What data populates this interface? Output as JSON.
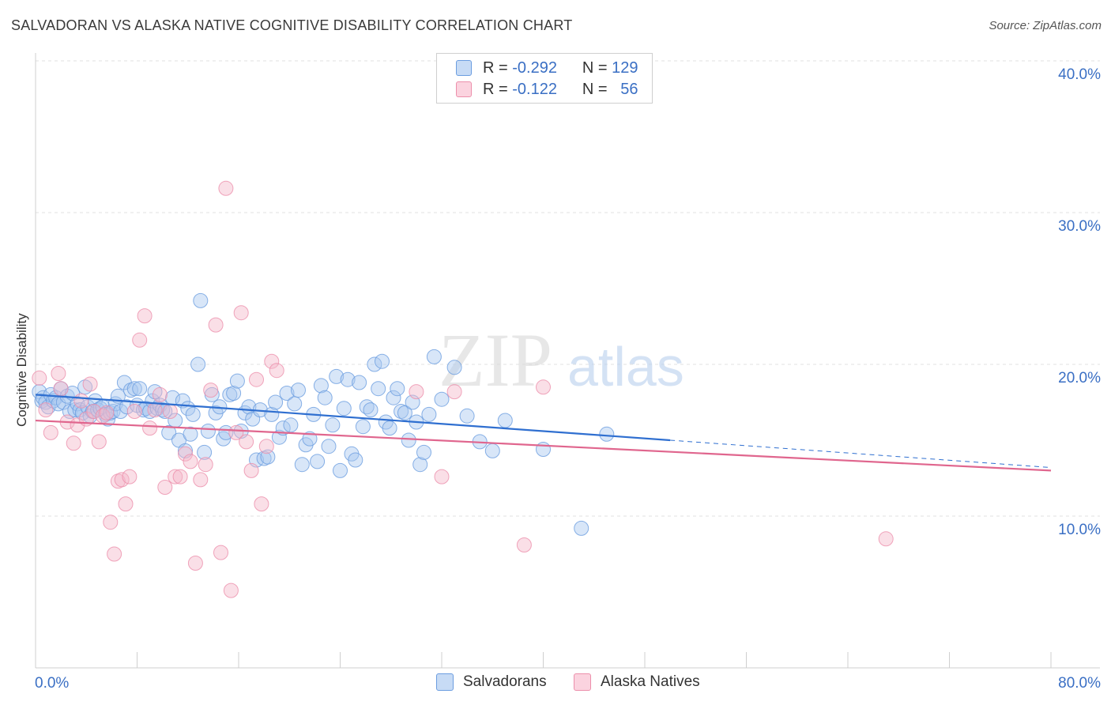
{
  "header": {
    "title": "SALVADORAN VS ALASKA NATIVE COGNITIVE DISABILITY CORRELATION CHART",
    "source": "Source: ZipAtlas.com"
  },
  "legend": {
    "rows": [
      {
        "r_label": "R =",
        "r_value": "-0.292",
        "n_label": "N =",
        "n_value": "129",
        "color": "#a9c8f0"
      },
      {
        "r_label": "R =",
        "r_value": "-0.122",
        "n_label": "N =",
        "n_value": "56",
        "color": "#f5b8ca"
      }
    ]
  },
  "bottom_legend": [
    {
      "label": "Salvadorans",
      "color": "#a9c8f0"
    },
    {
      "label": "Alaska Natives",
      "color": "#f5b8ca"
    }
  ],
  "watermark": {
    "zip": "ZIP",
    "atlas": "atlas"
  },
  "chart_data": {
    "type": "scatter",
    "ylabel": "Cognitive Disability",
    "x_tick_labels": [
      "0.0%",
      "80.0%"
    ],
    "y_tick_labels": [
      "10.0%",
      "20.0%",
      "30.0%",
      "40.0%"
    ],
    "xlim": [
      0,
      80
    ],
    "ylim": [
      0,
      40
    ],
    "grid": true,
    "legend_position": "top-center",
    "series": [
      {
        "name": "Salvadorans",
        "color": "#6b9de0",
        "fill": "#a9c8f0",
        "trend": {
          "x0": 0,
          "y0": 18.0,
          "x1": 50,
          "y1": 15.0,
          "dashed_to_x": 80,
          "dashed_to_y": 13.2
        },
        "points": [
          [
            0.3,
            18.2
          ],
          [
            0.5,
            17.6
          ],
          [
            0.6,
            17.8
          ],
          [
            0.8,
            17.5
          ],
          [
            1.0,
            17.2
          ],
          [
            1.2,
            18.0
          ],
          [
            1.4,
            17.6
          ],
          [
            1.6,
            17.8
          ],
          [
            1.8,
            17.4
          ],
          [
            2.0,
            18.4
          ],
          [
            2.2,
            17.5
          ],
          [
            2.5,
            17.9
          ],
          [
            2.7,
            16.9
          ],
          [
            2.9,
            18.1
          ],
          [
            3.1,
            17.0
          ],
          [
            3.3,
            17.4
          ],
          [
            3.5,
            17.0
          ],
          [
            3.7,
            16.8
          ],
          [
            3.9,
            18.5
          ],
          [
            4.1,
            17.2
          ],
          [
            4.3,
            16.6
          ],
          [
            4.5,
            16.9
          ],
          [
            4.7,
            17.6
          ],
          [
            4.9,
            17.0
          ],
          [
            5.1,
            17.1
          ],
          [
            5.3,
            17.2
          ],
          [
            5.5,
            16.7
          ],
          [
            5.7,
            16.4
          ],
          [
            5.9,
            16.8
          ],
          [
            6.1,
            16.9
          ],
          [
            6.3,
            17.4
          ],
          [
            6.5,
            17.9
          ],
          [
            6.7,
            16.9
          ],
          [
            7.0,
            18.8
          ],
          [
            7.2,
            17.2
          ],
          [
            7.5,
            18.3
          ],
          [
            7.8,
            18.4
          ],
          [
            8.0,
            17.3
          ],
          [
            8.2,
            18.4
          ],
          [
            8.5,
            17.0
          ],
          [
            8.7,
            17.1
          ],
          [
            9.0,
            16.9
          ],
          [
            9.2,
            17.6
          ],
          [
            9.4,
            18.2
          ],
          [
            9.6,
            17.1
          ],
          [
            9.8,
            17.3
          ],
          [
            10.0,
            17.0
          ],
          [
            10.2,
            16.9
          ],
          [
            10.5,
            15.5
          ],
          [
            10.8,
            17.8
          ],
          [
            11.0,
            16.3
          ],
          [
            11.3,
            15.0
          ],
          [
            11.6,
            17.6
          ],
          [
            11.8,
            14.3
          ],
          [
            12.0,
            17.1
          ],
          [
            12.2,
            15.4
          ],
          [
            12.4,
            16.7
          ],
          [
            12.8,
            20.0
          ],
          [
            13.0,
            24.2
          ],
          [
            13.3,
            14.2
          ],
          [
            13.6,
            15.6
          ],
          [
            13.9,
            18.0
          ],
          [
            14.2,
            16.8
          ],
          [
            14.5,
            17.2
          ],
          [
            14.8,
            15.1
          ],
          [
            15.0,
            15.5
          ],
          [
            15.3,
            18.0
          ],
          [
            15.6,
            18.1
          ],
          [
            15.9,
            18.9
          ],
          [
            16.2,
            15.6
          ],
          [
            16.5,
            16.8
          ],
          [
            16.8,
            17.2
          ],
          [
            17.1,
            16.4
          ],
          [
            17.4,
            13.7
          ],
          [
            17.7,
            17.0
          ],
          [
            18.0,
            13.8
          ],
          [
            18.3,
            13.9
          ],
          [
            18.6,
            16.7
          ],
          [
            18.9,
            17.5
          ],
          [
            19.2,
            15.2
          ],
          [
            19.5,
            15.8
          ],
          [
            19.8,
            18.1
          ],
          [
            20.1,
            16.0
          ],
          [
            20.4,
            17.4
          ],
          [
            20.7,
            18.3
          ],
          [
            21.0,
            13.4
          ],
          [
            21.3,
            14.7
          ],
          [
            21.6,
            15.1
          ],
          [
            21.9,
            16.7
          ],
          [
            22.2,
            13.6
          ],
          [
            22.5,
            18.6
          ],
          [
            22.8,
            17.8
          ],
          [
            23.1,
            14.6
          ],
          [
            23.4,
            16.0
          ],
          [
            23.7,
            19.2
          ],
          [
            24.0,
            13.0
          ],
          [
            24.3,
            17.1
          ],
          [
            24.6,
            19.0
          ],
          [
            24.9,
            14.1
          ],
          [
            25.2,
            13.7
          ],
          [
            25.5,
            18.8
          ],
          [
            25.8,
            15.9
          ],
          [
            26.1,
            17.2
          ],
          [
            26.4,
            17.0
          ],
          [
            26.7,
            20.0
          ],
          [
            27.0,
            18.4
          ],
          [
            27.3,
            20.2
          ],
          [
            27.6,
            16.2
          ],
          [
            27.9,
            15.8
          ],
          [
            28.2,
            17.8
          ],
          [
            28.5,
            18.4
          ],
          [
            28.8,
            16.9
          ],
          [
            29.1,
            16.8
          ],
          [
            29.4,
            15.0
          ],
          [
            29.7,
            17.5
          ],
          [
            30.0,
            16.2
          ],
          [
            30.3,
            13.4
          ],
          [
            30.6,
            14.2
          ],
          [
            31.0,
            16.7
          ],
          [
            31.4,
            20.5
          ],
          [
            32.0,
            17.7
          ],
          [
            33.0,
            19.8
          ],
          [
            34.0,
            16.6
          ],
          [
            35.0,
            14.9
          ],
          [
            36.0,
            14.3
          ],
          [
            37.0,
            16.3
          ],
          [
            40.0,
            14.4
          ],
          [
            43.0,
            9.2
          ],
          [
            45.0,
            15.4
          ]
        ]
      },
      {
        "name": "Alaska Natives",
        "color": "#ec8fab",
        "fill": "#f5b8ca",
        "trend": {
          "x0": 0,
          "y0": 16.3,
          "x1": 80,
          "y1": 13.0
        },
        "points": [
          [
            0.3,
            19.1
          ],
          [
            0.8,
            17.0
          ],
          [
            1.2,
            15.5
          ],
          [
            1.8,
            19.4
          ],
          [
            2.0,
            18.4
          ],
          [
            2.5,
            16.2
          ],
          [
            3.0,
            14.8
          ],
          [
            3.3,
            16.0
          ],
          [
            3.6,
            17.6
          ],
          [
            4.0,
            16.4
          ],
          [
            4.3,
            18.7
          ],
          [
            4.6,
            16.9
          ],
          [
            5.0,
            14.9
          ],
          [
            5.3,
            16.6
          ],
          [
            5.6,
            16.8
          ],
          [
            5.9,
            9.6
          ],
          [
            6.2,
            7.5
          ],
          [
            6.5,
            12.3
          ],
          [
            6.8,
            12.4
          ],
          [
            7.1,
            10.8
          ],
          [
            7.4,
            12.6
          ],
          [
            7.8,
            16.9
          ],
          [
            8.2,
            21.6
          ],
          [
            8.6,
            23.2
          ],
          [
            9.0,
            15.8
          ],
          [
            9.4,
            17.0
          ],
          [
            9.8,
            18.0
          ],
          [
            10.2,
            11.9
          ],
          [
            10.6,
            16.9
          ],
          [
            11.0,
            12.6
          ],
          [
            11.4,
            12.6
          ],
          [
            11.8,
            14.1
          ],
          [
            12.2,
            13.6
          ],
          [
            12.6,
            6.9
          ],
          [
            13.0,
            12.4
          ],
          [
            13.4,
            13.4
          ],
          [
            13.8,
            18.3
          ],
          [
            14.2,
            22.6
          ],
          [
            14.6,
            7.6
          ],
          [
            15.0,
            31.6
          ],
          [
            15.4,
            5.1
          ],
          [
            15.8,
            15.5
          ],
          [
            16.2,
            23.4
          ],
          [
            16.6,
            14.9
          ],
          [
            17.0,
            13.0
          ],
          [
            17.4,
            19.0
          ],
          [
            17.8,
            10.8
          ],
          [
            18.2,
            14.6
          ],
          [
            18.6,
            20.2
          ],
          [
            19.0,
            19.6
          ],
          [
            30.0,
            18.2
          ],
          [
            32.0,
            12.6
          ],
          [
            33.0,
            18.2
          ],
          [
            38.5,
            8.1
          ],
          [
            40.0,
            18.5
          ],
          [
            67.0,
            8.5
          ]
        ]
      }
    ]
  }
}
